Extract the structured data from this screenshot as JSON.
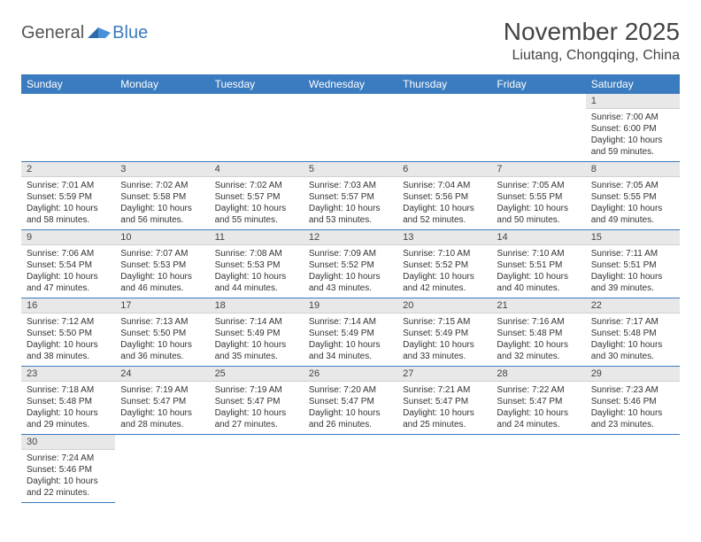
{
  "brand": {
    "part1": "General",
    "part2": "Blue"
  },
  "title": "November 2025",
  "location": "Liutang, Chongqing, China",
  "colors": {
    "header_bg": "#3b7bbf",
    "header_text": "#ffffff",
    "daynum_bg": "#e8e8e8",
    "border": "#3b7bbf",
    "text": "#333333",
    "brand_gray": "#555555",
    "brand_blue": "#3b7bbf"
  },
  "weekdays": [
    "Sunday",
    "Monday",
    "Tuesday",
    "Wednesday",
    "Thursday",
    "Friday",
    "Saturday"
  ],
  "weeks": [
    [
      null,
      null,
      null,
      null,
      null,
      null,
      {
        "n": "1",
        "sr": "7:00 AM",
        "ss": "6:00 PM",
        "dl": "10 hours and 59 minutes."
      }
    ],
    [
      {
        "n": "2",
        "sr": "7:01 AM",
        "ss": "5:59 PM",
        "dl": "10 hours and 58 minutes."
      },
      {
        "n": "3",
        "sr": "7:02 AM",
        "ss": "5:58 PM",
        "dl": "10 hours and 56 minutes."
      },
      {
        "n": "4",
        "sr": "7:02 AM",
        "ss": "5:57 PM",
        "dl": "10 hours and 55 minutes."
      },
      {
        "n": "5",
        "sr": "7:03 AM",
        "ss": "5:57 PM",
        "dl": "10 hours and 53 minutes."
      },
      {
        "n": "6",
        "sr": "7:04 AM",
        "ss": "5:56 PM",
        "dl": "10 hours and 52 minutes."
      },
      {
        "n": "7",
        "sr": "7:05 AM",
        "ss": "5:55 PM",
        "dl": "10 hours and 50 minutes."
      },
      {
        "n": "8",
        "sr": "7:05 AM",
        "ss": "5:55 PM",
        "dl": "10 hours and 49 minutes."
      }
    ],
    [
      {
        "n": "9",
        "sr": "7:06 AM",
        "ss": "5:54 PM",
        "dl": "10 hours and 47 minutes."
      },
      {
        "n": "10",
        "sr": "7:07 AM",
        "ss": "5:53 PM",
        "dl": "10 hours and 46 minutes."
      },
      {
        "n": "11",
        "sr": "7:08 AM",
        "ss": "5:53 PM",
        "dl": "10 hours and 44 minutes."
      },
      {
        "n": "12",
        "sr": "7:09 AM",
        "ss": "5:52 PM",
        "dl": "10 hours and 43 minutes."
      },
      {
        "n": "13",
        "sr": "7:10 AM",
        "ss": "5:52 PM",
        "dl": "10 hours and 42 minutes."
      },
      {
        "n": "14",
        "sr": "7:10 AM",
        "ss": "5:51 PM",
        "dl": "10 hours and 40 minutes."
      },
      {
        "n": "15",
        "sr": "7:11 AM",
        "ss": "5:51 PM",
        "dl": "10 hours and 39 minutes."
      }
    ],
    [
      {
        "n": "16",
        "sr": "7:12 AM",
        "ss": "5:50 PM",
        "dl": "10 hours and 38 minutes."
      },
      {
        "n": "17",
        "sr": "7:13 AM",
        "ss": "5:50 PM",
        "dl": "10 hours and 36 minutes."
      },
      {
        "n": "18",
        "sr": "7:14 AM",
        "ss": "5:49 PM",
        "dl": "10 hours and 35 minutes."
      },
      {
        "n": "19",
        "sr": "7:14 AM",
        "ss": "5:49 PM",
        "dl": "10 hours and 34 minutes."
      },
      {
        "n": "20",
        "sr": "7:15 AM",
        "ss": "5:49 PM",
        "dl": "10 hours and 33 minutes."
      },
      {
        "n": "21",
        "sr": "7:16 AM",
        "ss": "5:48 PM",
        "dl": "10 hours and 32 minutes."
      },
      {
        "n": "22",
        "sr": "7:17 AM",
        "ss": "5:48 PM",
        "dl": "10 hours and 30 minutes."
      }
    ],
    [
      {
        "n": "23",
        "sr": "7:18 AM",
        "ss": "5:48 PM",
        "dl": "10 hours and 29 minutes."
      },
      {
        "n": "24",
        "sr": "7:19 AM",
        "ss": "5:47 PM",
        "dl": "10 hours and 28 minutes."
      },
      {
        "n": "25",
        "sr": "7:19 AM",
        "ss": "5:47 PM",
        "dl": "10 hours and 27 minutes."
      },
      {
        "n": "26",
        "sr": "7:20 AM",
        "ss": "5:47 PM",
        "dl": "10 hours and 26 minutes."
      },
      {
        "n": "27",
        "sr": "7:21 AM",
        "ss": "5:47 PM",
        "dl": "10 hours and 25 minutes."
      },
      {
        "n": "28",
        "sr": "7:22 AM",
        "ss": "5:47 PM",
        "dl": "10 hours and 24 minutes."
      },
      {
        "n": "29",
        "sr": "7:23 AM",
        "ss": "5:46 PM",
        "dl": "10 hours and 23 minutes."
      }
    ],
    [
      {
        "n": "30",
        "sr": "7:24 AM",
        "ss": "5:46 PM",
        "dl": "10 hours and 22 minutes."
      },
      null,
      null,
      null,
      null,
      null,
      null
    ]
  ],
  "labels": {
    "sunrise": "Sunrise: ",
    "sunset": "Sunset: ",
    "daylight": "Daylight: "
  }
}
